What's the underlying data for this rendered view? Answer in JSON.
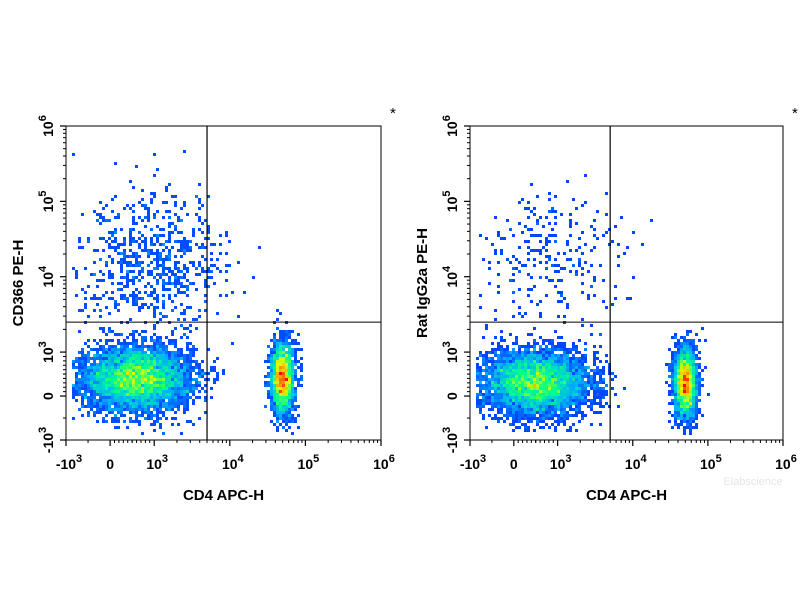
{
  "chart_data": [
    {
      "type": "scatter",
      "title": "",
      "xlabel": "CD4 APC-H",
      "ylabel": "CD366 PE-H",
      "x_scale": "biexponential",
      "y_scale": "biexponential",
      "xlim": [
        -1000,
        1000000
      ],
      "ylim": [
        -1000,
        1000000
      ],
      "x_ticks": [
        "-10 3",
        "0",
        "10 3",
        "10 4",
        "10 5",
        "10 6"
      ],
      "y_ticks": [
        "-10 3",
        "0",
        "10 3",
        "10 4",
        "10 5",
        "10 6"
      ],
      "quadrant_gate": {
        "x": 5000,
        "y": 2500
      },
      "corner_mark": "*",
      "populations": [
        {
          "name": "CD4-negative",
          "x_center": 600,
          "y_center": 400,
          "relative_size": 0.62
        },
        {
          "name": "CD4-positive",
          "x_center": 50000,
          "y_center": 400,
          "relative_size": 0.3
        },
        {
          "name": "scattered events",
          "x_center": 1000,
          "y_center": 15000,
          "relative_size": 0.08
        }
      ],
      "density_colors": [
        "#0000ff",
        "#00b4ff",
        "#00ff80",
        "#ffff00",
        "#ff0000"
      ]
    },
    {
      "type": "scatter",
      "title": "",
      "xlabel": "CD4 APC-H",
      "ylabel": "Rat IgG2a PE-H",
      "x_scale": "biexponential",
      "y_scale": "biexponential",
      "xlim": [
        -1000,
        1000000
      ],
      "ylim": [
        -1000,
        1000000
      ],
      "x_ticks": [
        "-10 3",
        "0",
        "10 3",
        "10 4",
        "10 5",
        "10 6"
      ],
      "y_ticks": [
        "-10 3",
        "0",
        "10 3",
        "10 4",
        "10 5",
        "10 6"
      ],
      "quadrant_gate": {
        "x": 5000,
        "y": 2500
      },
      "corner_mark": "*",
      "watermark": "Elabscience",
      "populations": [
        {
          "name": "CD4-negative",
          "x_center": 500,
          "y_center": 300,
          "relative_size": 0.65
        },
        {
          "name": "CD4-positive",
          "x_center": 50000,
          "y_center": 300,
          "relative_size": 0.32
        },
        {
          "name": "scattered events",
          "x_center": 800,
          "y_center": 15000,
          "relative_size": 0.03
        }
      ],
      "density_colors": [
        "#0000ff",
        "#00b4ff",
        "#00ff80",
        "#ffff00",
        "#ff0000"
      ]
    }
  ]
}
